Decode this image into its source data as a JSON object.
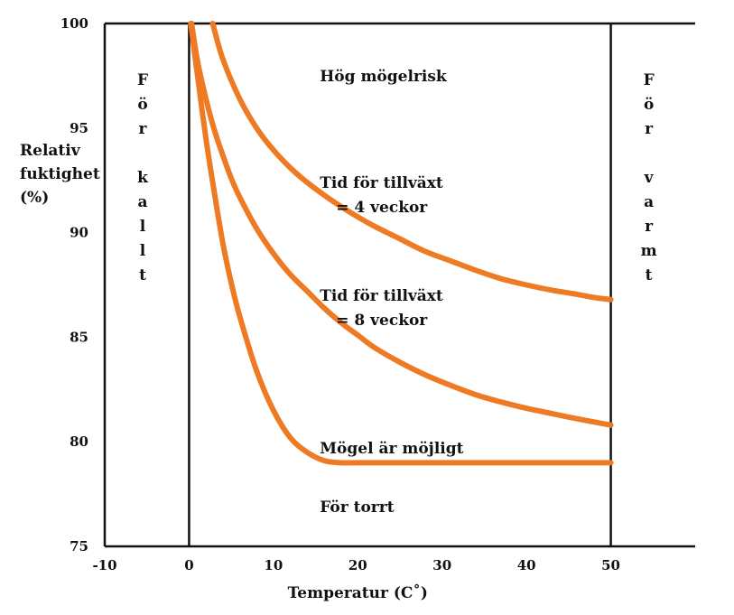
{
  "chart_data": {
    "type": "line",
    "ylabel_lines": [
      "Relativ",
      "fuktighet",
      "(%)"
    ],
    "xlabel": "Temperatur (C˚)",
    "x_ticks": [
      "-10",
      "0",
      "10",
      "20",
      "30",
      "40",
      "50"
    ],
    "y_ticks": [
      "75",
      "80",
      "85",
      "90",
      "95",
      "100"
    ],
    "xlim": [
      -10,
      60
    ],
    "ylim": [
      75,
      100
    ],
    "cold_boundary": 0,
    "warm_boundary": 50,
    "line_color": "#ee7a24",
    "zones": {
      "cold": {
        "letters": [
          "F",
          "ö",
          "r",
          "",
          "k",
          "a",
          "l",
          "l",
          "t"
        ],
        "x": -5.5,
        "y_start": 97.5
      },
      "warm": {
        "letters": [
          "F",
          "ö",
          "r",
          "",
          "v",
          "a",
          "r",
          "m",
          "t"
        ],
        "x": 54.5,
        "y_start": 97.5
      }
    },
    "annotations": [
      {
        "name": "high-risk-label",
        "lines": [
          "Hög mögelrisk"
        ],
        "x": 15.5,
        "y": 97.5
      },
      {
        "name": "growth-4-weeks-label",
        "lines": [
          "Tid för tillväxt",
          "= 4 veckor"
        ],
        "x": 15.5,
        "y": 92.4
      },
      {
        "name": "growth-8-weeks-label",
        "lines": [
          "Tid för tillväxt",
          "= 8 veckor"
        ],
        "x": 15.5,
        "y": 87.0
      },
      {
        "name": "mold-possible-label",
        "lines": [
          "Mögel är möjligt"
        ],
        "x": 15.5,
        "y": 79.7
      },
      {
        "name": "too-dry-label",
        "lines": [
          "För torrt"
        ],
        "x": 15.5,
        "y": 76.9
      }
    ],
    "series": [
      {
        "name": "Tid för tillväxt = 4 veckor",
        "x": [
          2.8,
          4,
          6,
          8,
          10,
          12,
          14,
          16,
          18,
          20,
          22,
          25,
          28,
          31,
          34,
          37,
          40,
          43,
          46,
          48,
          50
        ],
        "y": [
          100,
          98.3,
          96.4,
          95.0,
          93.95,
          93.1,
          92.4,
          91.8,
          91.25,
          90.75,
          90.3,
          89.7,
          89.1,
          88.65,
          88.2,
          87.8,
          87.5,
          87.25,
          87.05,
          86.9,
          86.8
        ]
      },
      {
        "name": "Tid för tillväxt = 8 veckor",
        "x": [
          0.3,
          1,
          2,
          3,
          4,
          5,
          6,
          8,
          10,
          12,
          14,
          16,
          18,
          20,
          22,
          25,
          28,
          31,
          34,
          37,
          40,
          43,
          46,
          48,
          50
        ],
        "y": [
          100,
          98.2,
          96.4,
          94.9,
          93.7,
          92.6,
          91.7,
          90.2,
          89.0,
          88.0,
          87.2,
          86.4,
          85.7,
          85.1,
          84.5,
          83.8,
          83.2,
          82.7,
          82.25,
          81.9,
          81.6,
          81.35,
          81.1,
          80.95,
          80.8
        ]
      },
      {
        "name": "Mögel är möjligt",
        "x": [
          0.2,
          1,
          2,
          3,
          4,
          5,
          6,
          8,
          10,
          12,
          14,
          16,
          18,
          20,
          25,
          30,
          40,
          50
        ],
        "y": [
          100,
          97.5,
          94.5,
          91.9,
          89.5,
          87.6,
          86.0,
          83.4,
          81.5,
          80.2,
          79.5,
          79.1,
          79.0,
          79.0,
          79.0,
          79.0,
          79.0,
          79.0
        ]
      }
    ]
  }
}
